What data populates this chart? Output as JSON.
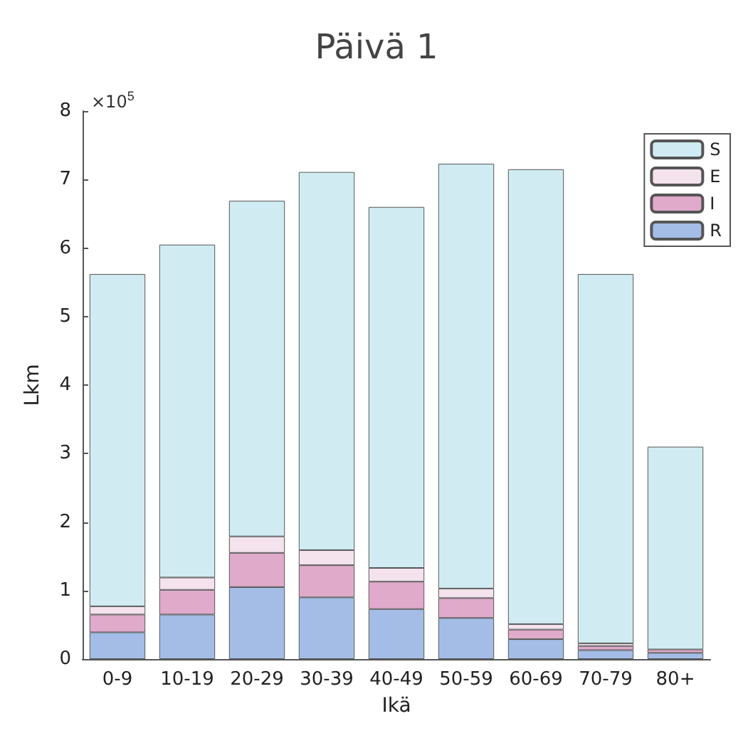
{
  "chart_data": {
    "type": "bar",
    "title": "Päivä 1",
    "xlabel": "Ikä",
    "ylabel": "Lkm",
    "stacked": true,
    "categories": [
      "0-9",
      "10-19",
      "20-29",
      "30-39",
      "40-49",
      "50-59",
      "60-69",
      "70-79",
      "80+"
    ],
    "series": [
      {
        "name": "R",
        "color": "#a3bde6",
        "values": [
          0.39,
          0.65,
          1.05,
          0.9,
          0.73,
          0.6,
          0.29,
          0.13,
          0.09
        ]
      },
      {
        "name": "I",
        "color": "#e0aacb",
        "values": [
          0.26,
          0.36,
          0.5,
          0.47,
          0.4,
          0.29,
          0.14,
          0.06,
          0.05
        ]
      },
      {
        "name": "E",
        "color": "#f4e2ec",
        "values": [
          0.12,
          0.18,
          0.24,
          0.22,
          0.2,
          0.14,
          0.08,
          0.04,
          null
        ]
      },
      {
        "name": "S",
        "color": "#d0ecf2",
        "values": [
          4.85,
          4.86,
          4.9,
          5.52,
          5.27,
          6.2,
          6.64,
          5.39,
          2.96
        ]
      }
    ],
    "ylim": [
      0,
      8
    ],
    "yticks": [
      0,
      1,
      2,
      3,
      4,
      5,
      6,
      7,
      8
    ],
    "annotations": [
      "×10$^{5}$"
    ],
    "legend": "top right",
    "grid": false
  }
}
